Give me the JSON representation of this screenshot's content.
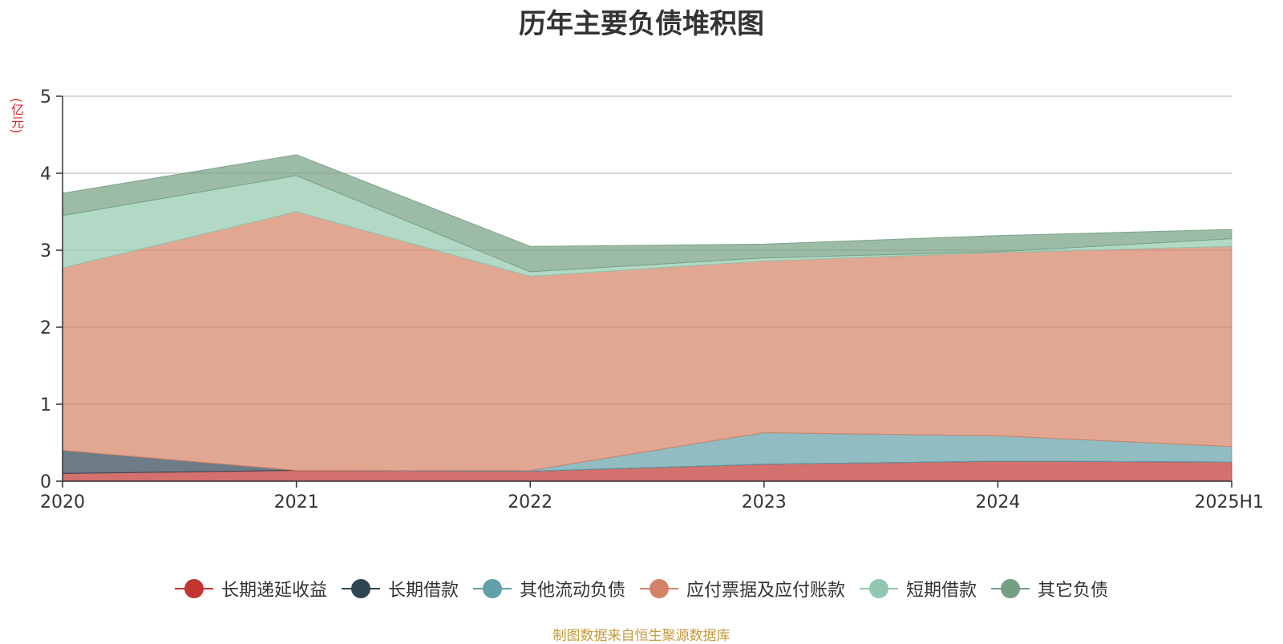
{
  "chart_data": {
    "type": "area",
    "stacked": true,
    "title": "历年主要负债堆积图",
    "ylabel": "(亿元)",
    "categories": [
      "2020",
      "2021",
      "2022",
      "2023",
      "2024",
      "2025H1"
    ],
    "ylim": [
      0,
      5
    ],
    "yticks": [
      "0",
      "1",
      "2",
      "3",
      "4",
      "5"
    ],
    "grid": true,
    "legend_position": "bottom",
    "series": [
      {
        "name": "长期递延收益",
        "color": "#c23531",
        "values": [
          0.1,
          0.14,
          0.13,
          0.22,
          0.26,
          0.25
        ]
      },
      {
        "name": "长期借款",
        "color": "#2f4554",
        "values": [
          0.3,
          0,
          0,
          0,
          0,
          0
        ]
      },
      {
        "name": "其他流动负债",
        "color": "#61a0a8",
        "values": [
          0,
          0,
          0.01,
          0.41,
          0.33,
          0.2
        ]
      },
      {
        "name": "应付票据及应付账款",
        "color": "#d48265",
        "values": [
          2.37,
          3.36,
          2.52,
          2.23,
          2.38,
          2.6
        ]
      },
      {
        "name": "短期借款",
        "color": "#91c7ae",
        "values": [
          0.68,
          0.47,
          0.06,
          0.04,
          0.01,
          0.1
        ]
      },
      {
        "name": "其它负债",
        "color": "#749f83",
        "values": [
          0.29,
          0.27,
          0.33,
          0.18,
          0.21,
          0.12
        ]
      }
    ]
  },
  "unit_color": "#e0242b",
  "source_note": "制图数据来自恒生聚源数据库",
  "source_color": "#c49a3c"
}
